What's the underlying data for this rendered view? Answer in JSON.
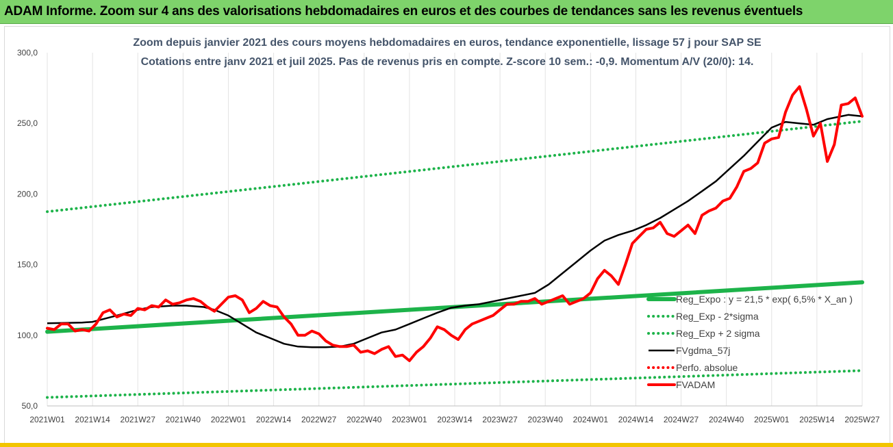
{
  "header": {
    "title": "ADAM Informe. Zoom sur 4 ans des valorisations hebdomadaires en euros et des courbes de tendances sans les revenus éventuels",
    "bg_color": "#7ed36b"
  },
  "chart_data": {
    "type": "line",
    "title_line1": "Zoom depuis janvier 2021 des cours moyens hebdomadaires en euros, tendance exponentielle, lissage 57 j pour SAP SE",
    "title_line2": "Cotations entre janv 2021 et juil 2025. Pas de revenus pris en compte. Z-score 10 sem.: -0,9. Momentum A/V (20/0): 14.",
    "xlabel": "",
    "ylabel": "",
    "ylim": [
      50,
      300
    ],
    "grid": "vertical",
    "legend_position": "bottom-right",
    "x_ticks": [
      "2021W01",
      "2021W14",
      "2021W27",
      "2021W40",
      "2022W01",
      "2022W14",
      "2022W27",
      "2022W40",
      "2023W01",
      "2023W14",
      "2023W27",
      "2023W40",
      "2024W01",
      "2024W14",
      "2024W27",
      "2024W40",
      "2025W01",
      "2025W14",
      "2025W27"
    ],
    "y_ticks": [
      "50,0",
      "100,0",
      "150,0",
      "200,0",
      "250,0",
      "300,0"
    ],
    "y_tick_values": [
      50,
      100,
      150,
      200,
      250,
      300
    ],
    "series": [
      {
        "name": "Reg_Expo : y = 21,5 * exp( 6,5% *  X_an )",
        "color": "#1db34a",
        "style": "solid-thick",
        "x": [
          0,
          234
        ],
        "y": [
          102.5,
          137.5
        ]
      },
      {
        "name": "Reg_Exp - 2*sigma",
        "color": "#1db34a",
        "style": "dotted",
        "x": [
          0,
          234
        ],
        "y": [
          56,
          75
        ]
      },
      {
        "name": "Reg_Exp + 2 sigma",
        "color": "#1db34a",
        "style": "dotted",
        "x": [
          0,
          234
        ],
        "y": [
          187.5,
          251.5
        ]
      },
      {
        "name": "FVgdma_57j",
        "color": "#000000",
        "style": "solid",
        "x": [
          0,
          10,
          13,
          20,
          26,
          30,
          36,
          40,
          45,
          48,
          52,
          56,
          60,
          64,
          68,
          72,
          76,
          80,
          84,
          88,
          92,
          96,
          100,
          104,
          108,
          112,
          116,
          120,
          124,
          128,
          132,
          136,
          140,
          144,
          148,
          152,
          156,
          160,
          164,
          168,
          172,
          176,
          180,
          184,
          188,
          192,
          196,
          200,
          204,
          208,
          212,
          216,
          220,
          224,
          228,
          230,
          234
        ],
        "y": [
          108.5,
          109,
          109.5,
          114,
          118,
          120,
          121,
          121,
          120,
          118,
          114,
          108,
          102,
          98,
          94,
          92,
          91.5,
          91.5,
          92,
          94,
          98,
          102,
          104,
          108,
          112,
          116,
          119.5,
          121,
          122,
          124,
          126,
          128,
          130,
          136,
          144,
          152,
          160,
          167,
          171,
          174,
          178,
          183,
          189,
          195,
          202,
          209,
          218,
          227,
          237,
          247,
          251,
          250,
          249,
          253,
          255,
          256,
          255
        ]
      },
      {
        "name": "Perfo. absolue",
        "color": "#ff0000",
        "style": "dotted",
        "x": [],
        "y": []
      },
      {
        "name": "FVADAM",
        "color": "#ff0000",
        "style": "solid-thick",
        "x": [
          0,
          2,
          4,
          6,
          8,
          10,
          12,
          14,
          16,
          18,
          20,
          22,
          24,
          26,
          28,
          30,
          32,
          34,
          36,
          38,
          40,
          42,
          44,
          46,
          48,
          50,
          52,
          54,
          56,
          58,
          60,
          62,
          64,
          66,
          68,
          70,
          72,
          74,
          76,
          78,
          80,
          82,
          84,
          86,
          88,
          90,
          92,
          94,
          96,
          98,
          100,
          102,
          104,
          106,
          108,
          110,
          112,
          114,
          116,
          118,
          120,
          122,
          124,
          126,
          128,
          130,
          132,
          134,
          136,
          138,
          140,
          142,
          144,
          146,
          148,
          150,
          152,
          154,
          156,
          158,
          160,
          162,
          164,
          166,
          168,
          170,
          172,
          174,
          176,
          178,
          180,
          182,
          184,
          186,
          188,
          190,
          192,
          194,
          196,
          198,
          200,
          202,
          204,
          206,
          208,
          210,
          212,
          214,
          216,
          218,
          220,
          222,
          224,
          226,
          228,
          230,
          232,
          234
        ],
        "y": [
          105,
          104,
          108,
          108,
          103,
          104,
          103,
          108,
          116,
          118,
          113,
          115,
          114,
          119,
          118,
          121,
          120,
          125,
          122,
          123,
          125,
          126,
          124,
          120,
          117,
          122,
          127,
          128,
          125,
          116,
          119,
          124,
          121,
          120,
          113,
          108,
          100,
          100,
          103,
          101,
          96,
          93,
          92,
          92,
          93,
          88,
          89,
          87,
          90,
          92,
          85,
          86,
          82,
          88,
          92,
          98,
          106,
          104,
          100,
          97,
          104,
          108,
          110,
          112,
          114,
          118,
          122,
          122,
          124,
          124,
          126,
          122,
          124,
          126,
          128,
          122,
          124,
          126,
          130,
          140,
          146,
          142,
          136,
          150,
          165,
          170,
          175,
          176,
          180,
          172,
          170,
          174,
          178,
          172,
          185,
          188,
          190,
          195,
          197,
          205,
          216,
          218,
          222,
          236,
          239,
          240,
          258,
          270,
          276,
          260,
          241,
          250,
          223,
          235,
          263,
          264,
          268,
          255
        ]
      }
    ]
  }
}
